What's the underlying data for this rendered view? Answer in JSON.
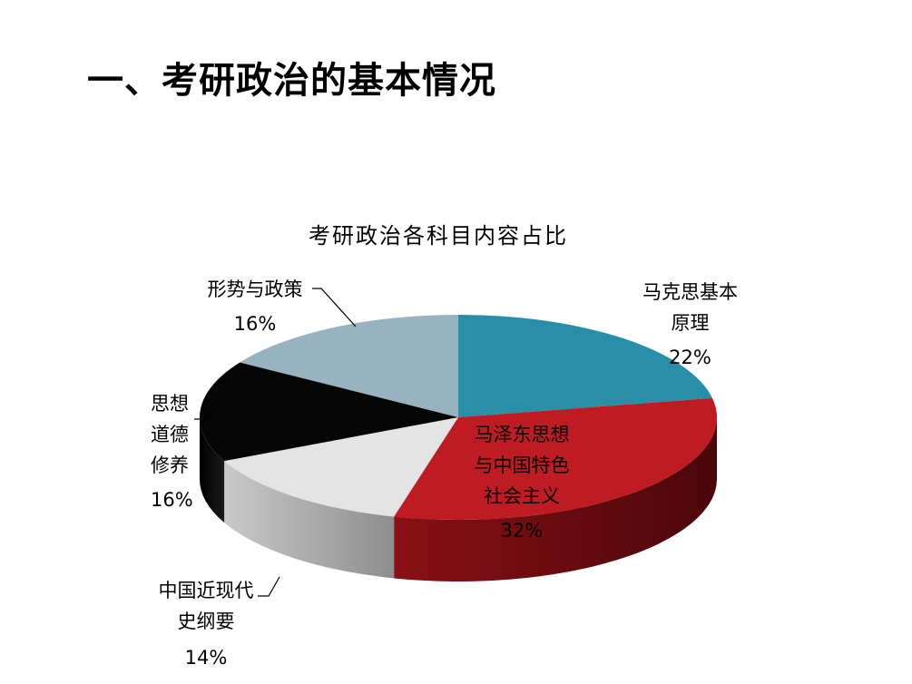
{
  "slide": {
    "title": "一、考研政治的基本情况"
  },
  "chart_data": {
    "type": "pie",
    "title": "考研政治各科目内容占比",
    "slices": [
      {
        "name": "马克思基本原理",
        "lines": [
          "马克思基本",
          "原理"
        ],
        "value": 22,
        "label": "22%",
        "color": "#2a8ea8"
      },
      {
        "name": "马泽东思想与中国特色社会主义",
        "lines": [
          "马泽东思想",
          "与中国特色",
          "社会主义"
        ],
        "value": 32,
        "label": "32%",
        "color": "#be1b22"
      },
      {
        "name": "中国近现代史纲要",
        "lines": [
          "中国近现代",
          "史纲要"
        ],
        "value": 14,
        "label": "14%",
        "color": "#e4e4e4"
      },
      {
        "name": "思想道德修养",
        "lines": [
          "思想",
          "道德",
          "修养"
        ],
        "value": 16,
        "label": "16%",
        "color": "#050505"
      },
      {
        "name": "形势与政策",
        "lines": [
          "形势与政策"
        ],
        "value": 16,
        "label": "16%",
        "color": "#98b3c0"
      }
    ],
    "legend": "none"
  }
}
